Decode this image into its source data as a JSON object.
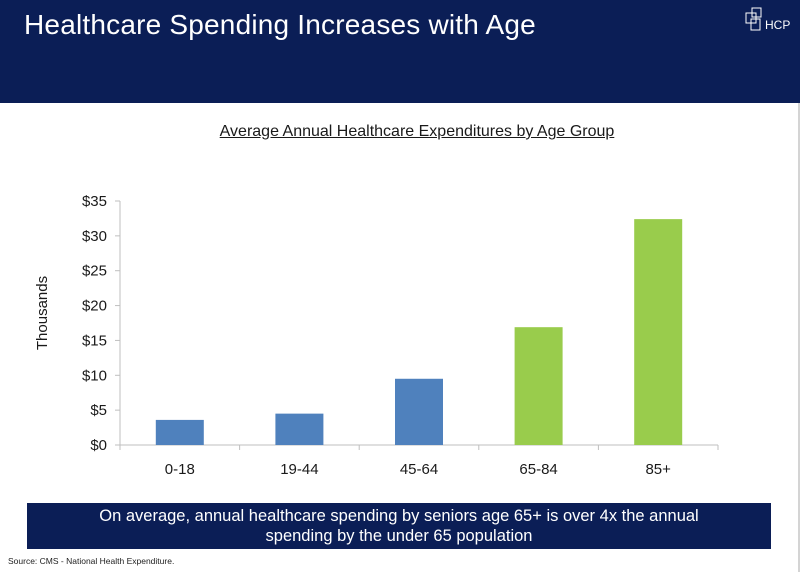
{
  "header": {
    "title": "Healthcare Spending Increases with Age",
    "logo_text": "HCP",
    "background": "#0b1e56"
  },
  "chart_data": {
    "type": "bar",
    "title": "Average Annual Healthcare Expenditures by Age Group",
    "xlabel": "",
    "ylabel": "Thousands",
    "categories": [
      "0-18",
      "19-44",
      "45-64",
      "65-84",
      "85+"
    ],
    "values": [
      3.6,
      4.5,
      9.5,
      16.9,
      32.4
    ],
    "bar_colors": [
      "#4f81bd",
      "#4f81bd",
      "#4f81bd",
      "#99cc4c",
      "#99cc4c"
    ],
    "ylim": [
      0,
      35
    ],
    "yticks": [
      0,
      5,
      10,
      15,
      20,
      25,
      30,
      35
    ],
    "ytick_labels": [
      "$0",
      "$5",
      "$10",
      "$15",
      "$20",
      "$25",
      "$30",
      "$35"
    ],
    "grid": false,
    "legend": "none"
  },
  "callout": {
    "text": "On average, annual healthcare spending by seniors age 65+ is over 4x the annual spending by the under 65 population"
  },
  "source": "Source: CMS - National Health Expenditure."
}
